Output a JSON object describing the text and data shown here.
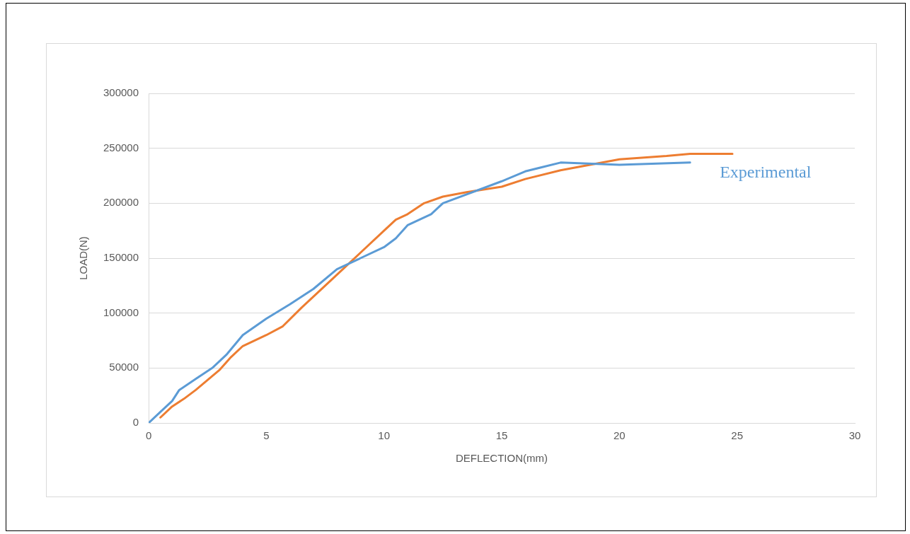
{
  "chart_data": {
    "type": "line",
    "xlabel": "DEFLECTION(mm)",
    "ylabel": "LOAD(N)",
    "xlim": [
      0,
      30
    ],
    "xticks": [
      0,
      5,
      10,
      15,
      20,
      25,
      30
    ],
    "ylim": [
      0,
      300000
    ],
    "yticks": [
      0,
      50000,
      100000,
      150000,
      200000,
      250000,
      300000
    ],
    "grid": "y",
    "legend": false,
    "marker": "none",
    "series": [
      {
        "name": "Experimental",
        "color": "#5b9bd5",
        "x": [
          0,
          0.5,
          1,
          1.3,
          2,
          2.7,
          3.3,
          4,
          5,
          6,
          7,
          8,
          9,
          10,
          10.5,
          11,
          12,
          12.5,
          15,
          16,
          17.5,
          20,
          23
        ],
        "values": [
          0,
          10000,
          20000,
          30000,
          40000,
          50000,
          62000,
          80000,
          95000,
          108000,
          122000,
          140000,
          150000,
          160000,
          168000,
          180000,
          190000,
          200000,
          220000,
          229000,
          237000,
          235000,
          237000
        ]
      },
      {
        "color": "#ed7d31",
        "x": [
          0.5,
          1,
          1.5,
          2,
          3,
          3.5,
          4,
          5,
          5.7,
          6.5,
          7,
          8,
          9,
          10,
          10.5,
          11,
          11.7,
          12.5,
          13.5,
          15,
          16,
          17.5,
          20,
          22,
          23,
          24.8
        ],
        "values": [
          5000,
          15000,
          22000,
          30000,
          48000,
          60000,
          70000,
          80000,
          88000,
          105000,
          115000,
          135000,
          155000,
          175000,
          185000,
          190000,
          200000,
          206000,
          210000,
          215000,
          222000,
          230000,
          240000,
          243000,
          245000,
          245000
        ]
      }
    ]
  }
}
